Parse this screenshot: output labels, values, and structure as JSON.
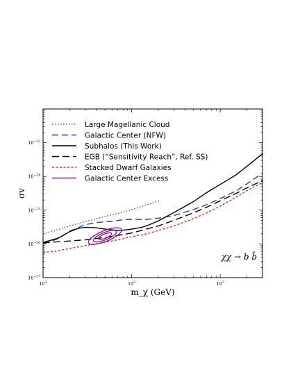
{
  "chart_data": {
    "type": "line",
    "title": "",
    "xlabel": "m_χ (GeV)",
    "ylabel": "σv",
    "xscale": "log",
    "yscale": "log",
    "xlim": [
      10,
      3000
    ],
    "ylim": [
      1e-27,
      1e-22
    ],
    "x_ticks": [
      {
        "value": 10,
        "base": "10",
        "exp": "1"
      },
      {
        "value": 100,
        "base": "10",
        "exp": "2"
      },
      {
        "value": 1000,
        "base": "10",
        "exp": "3"
      }
    ],
    "y_ticks": [
      {
        "value": 1e-27,
        "base": "10",
        "exp": "−27"
      },
      {
        "value": 1e-26,
        "base": "10",
        "exp": "−26"
      },
      {
        "value": 1e-25,
        "base": "10",
        "exp": "−25"
      },
      {
        "value": 1e-24,
        "base": "10",
        "exp": "−24"
      },
      {
        "value": 1e-23,
        "base": "10",
        "exp": "−23"
      }
    ],
    "annotation": "χχ → b b̄",
    "legend_position": "top-left",
    "series": [
      {
        "name": "Large Magellanic Cloud",
        "color": "#555555",
        "dash": "1.5,2.5",
        "points": [
          [
            10,
            2e-26
          ],
          [
            15,
            2.7e-26
          ],
          [
            20,
            3.4e-26
          ],
          [
            30,
            4.6e-26
          ],
          [
            50,
            6.5e-26
          ],
          [
            80,
            8.8e-26
          ],
          [
            120,
            1.2e-25
          ],
          [
            160,
            1.55e-25
          ],
          [
            210,
            1.95e-25
          ]
        ]
      },
      {
        "name": "Galactic Center (NFW)",
        "color": "#1f3fd0",
        "dash": "9,5",
        "points": [
          [
            10,
            1e-26
          ],
          [
            15,
            1.45e-26
          ],
          [
            20,
            2.4e-26
          ],
          [
            30,
            3.7e-26
          ],
          [
            40,
            4.3e-26
          ],
          [
            60,
            4.7e-26
          ],
          [
            80,
            5.2e-26
          ],
          [
            100,
            5.35e-26
          ],
          [
            150,
            5.3e-26
          ],
          [
            200,
            5.8e-26
          ],
          [
            300,
            6.9e-26
          ],
          [
            500,
            1.05e-25
          ],
          [
            700,
            1.45e-25
          ],
          [
            1000,
            2.2e-25
          ],
          [
            1500,
            3.7e-25
          ],
          [
            2000,
            6e-25
          ],
          [
            3000,
            1.25e-24
          ]
        ]
      },
      {
        "name": "Subhalos (This Work)",
        "color": "#000000",
        "dash": "",
        "points": [
          [
            10,
            1.1e-26
          ],
          [
            15,
            1.5e-26
          ],
          [
            20,
            2.3e-26
          ],
          [
            25,
            2.9e-26
          ],
          [
            30,
            3.1e-26
          ],
          [
            40,
            3e-26
          ],
          [
            50,
            2.75e-26
          ],
          [
            60,
            2.6e-26
          ],
          [
            70,
            2.5e-26
          ],
          [
            80,
            2.55e-26
          ],
          [
            100,
            2.75e-26
          ],
          [
            130,
            3.1e-26
          ],
          [
            150,
            3.5e-26
          ],
          [
            200,
            4.8e-26
          ],
          [
            300,
            8.5e-26
          ],
          [
            500,
            1.8e-25
          ],
          [
            700,
            3.3e-25
          ],
          [
            1000,
            5.8e-25
          ],
          [
            1500,
            1.1e-24
          ],
          [
            2000,
            2e-24
          ],
          [
            3000,
            4.7e-24
          ]
        ]
      },
      {
        "name": "EGB (“Sensitivity Reach”, Ref. SS)",
        "color": "#000000",
        "dash": "10,5",
        "points": [
          [
            10,
            1.08e-26
          ],
          [
            20,
            1.22e-26
          ],
          [
            30,
            1.32e-26
          ],
          [
            50,
            1.55e-26
          ],
          [
            80,
            1.9e-26
          ],
          [
            100,
            2.1e-26
          ],
          [
            150,
            2.8e-26
          ],
          [
            200,
            3.4e-26
          ],
          [
            300,
            5e-26
          ],
          [
            500,
            8.4e-26
          ],
          [
            700,
            1.22e-25
          ],
          [
            1000,
            1.9e-25
          ],
          [
            1500,
            3.1e-25
          ],
          [
            2000,
            4.6e-25
          ],
          [
            3000,
            7.5e-25
          ]
        ]
      },
      {
        "name": "Stacked Dwarf Galaxies",
        "color": "#e8231c",
        "dash": "3,2.5",
        "points": [
          [
            10,
            5.5e-27
          ],
          [
            15,
            6.3e-27
          ],
          [
            20,
            7.3e-27
          ],
          [
            30,
            8.9e-27
          ],
          [
            50,
            1.12e-26
          ],
          [
            80,
            1.42e-26
          ],
          [
            100,
            1.65e-26
          ],
          [
            150,
            2e-26
          ],
          [
            200,
            2.5e-26
          ],
          [
            300,
            3.4e-26
          ],
          [
            500,
            5.6e-26
          ],
          [
            700,
            8.3e-26
          ],
          [
            1000,
            1.32e-25
          ],
          [
            1500,
            2.4e-25
          ],
          [
            2000,
            3.8e-25
          ],
          [
            3000,
            6.6e-25
          ]
        ]
      }
    ],
    "excess": {
      "name": "Galactic Center Excess",
      "color": "#8b1a8b",
      "center_x": 50,
      "center_y": 1.7e-26,
      "contours": [
        {
          "rx_dex": 0.2,
          "ry_dex": 0.16
        },
        {
          "rx_dex": 0.14,
          "ry_dex": 0.11
        },
        {
          "rx_dex": 0.08,
          "ry_dex": 0.065
        }
      ],
      "tilt_deg": -22
    }
  }
}
